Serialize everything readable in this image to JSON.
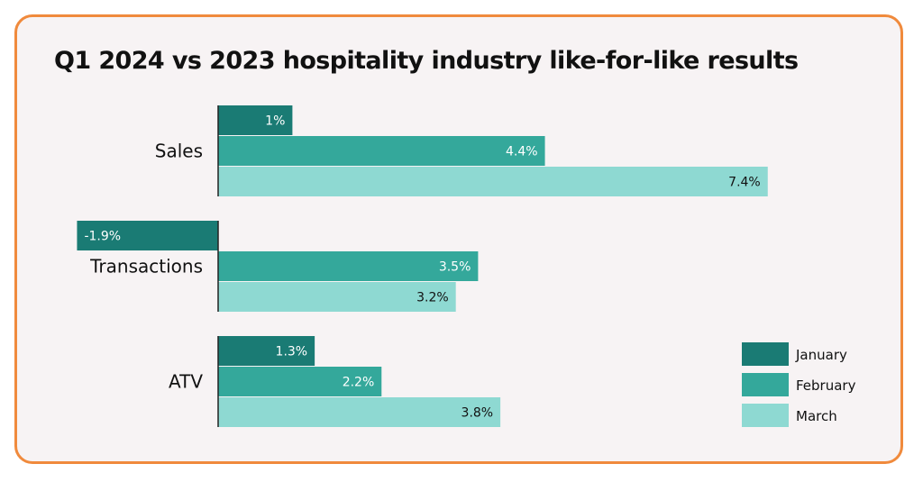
{
  "chart_data": {
    "type": "bar",
    "orientation": "horizontal",
    "title": "Q1 2024 vs 2023 hospitality industry like-for-like results",
    "categories": [
      "Sales",
      "Transactions",
      "ATV"
    ],
    "series": [
      {
        "name": "January",
        "values": [
          1,
          -1.9,
          1.3
        ],
        "labels": [
          "1%",
          "-1.9%",
          "1.3%"
        ],
        "color": "#1a7b74"
      },
      {
        "name": "February",
        "values": [
          4.4,
          3.5,
          2.2
        ],
        "labels": [
          "4.4%",
          "3.5%",
          "2.2%"
        ],
        "color": "#34a89b"
      },
      {
        "name": "March",
        "values": [
          7.4,
          3.2,
          3.8
        ],
        "labels": [
          "7.4%",
          "3.2%",
          "3.8%"
        ],
        "color": "#8ed9d2"
      }
    ],
    "label_colors": {
      "January": "#ffffff",
      "February": "#ffffff",
      "March": "#111111"
    },
    "xlim": [
      -1.9,
      7.4
    ],
    "grid": false,
    "legend": "bottom-right",
    "frame_color": "#f08a3c",
    "background": "#f7f3f4"
  }
}
